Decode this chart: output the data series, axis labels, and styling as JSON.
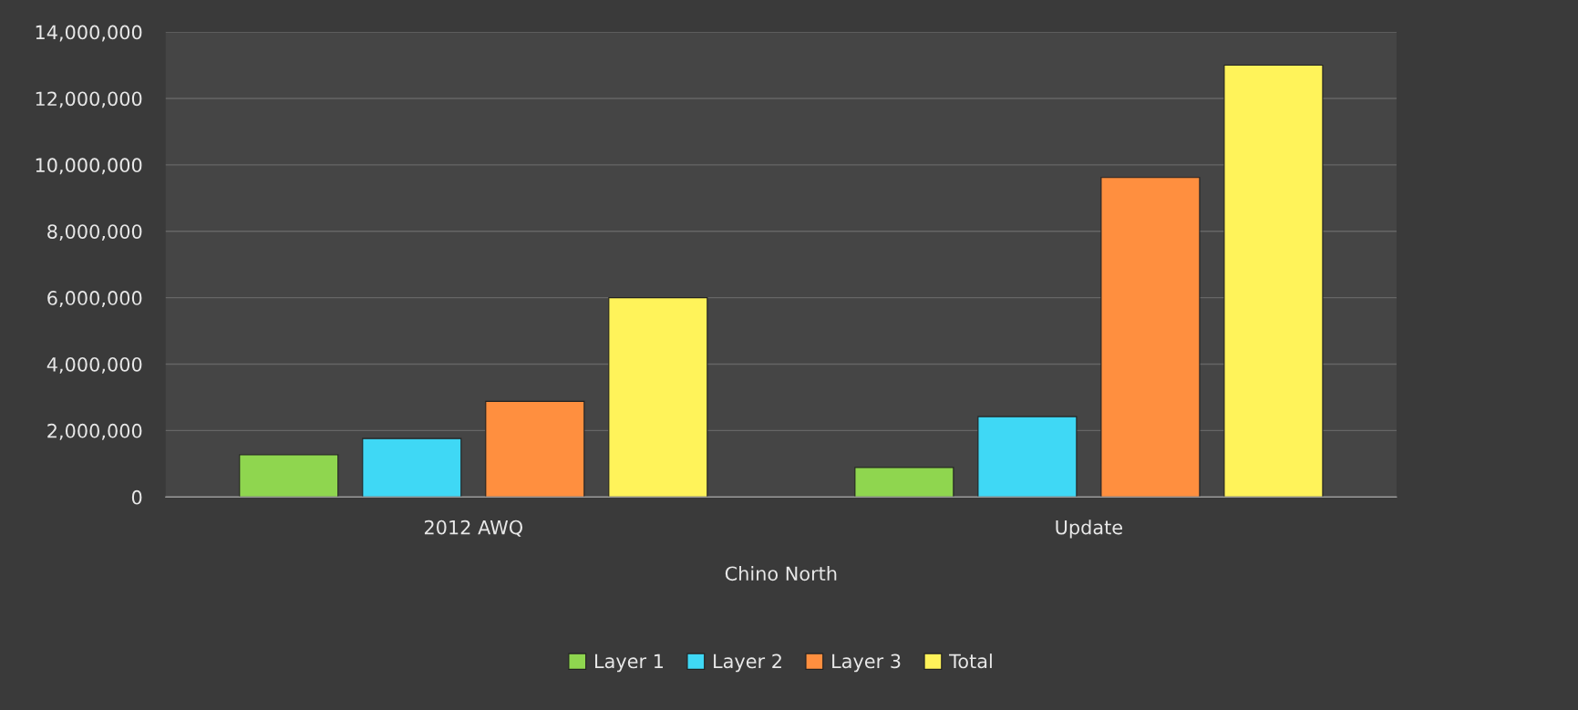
{
  "chart_data": {
    "type": "bar",
    "categories": [
      "2012 AWQ",
      "Update"
    ],
    "xlabel": "Chino North",
    "series": [
      {
        "name": "Layer 1",
        "color": "#8fd64f",
        "values": [
          1270000,
          890000
        ]
      },
      {
        "name": "Layer 2",
        "color": "#3fd8f5",
        "values": [
          1760000,
          2420000
        ]
      },
      {
        "name": "Layer 3",
        "color": "#ff8f3f",
        "values": [
          2880000,
          9620000
        ]
      },
      {
        "name": "Total",
        "color": "#fff35a",
        "values": [
          6000000,
          13000000
        ]
      }
    ],
    "ylim": [
      0,
      14000000
    ],
    "yticks": [
      {
        "value": 0,
        "label": "0"
      },
      {
        "value": 2000000,
        "label": "2,000,000"
      },
      {
        "value": 4000000,
        "label": "4,000,000"
      },
      {
        "value": 6000000,
        "label": "6,000,000"
      },
      {
        "value": 8000000,
        "label": "8,000,000"
      },
      {
        "value": 10000000,
        "label": "10,000,000"
      },
      {
        "value": 12000000,
        "label": "12,000,000"
      },
      {
        "value": 14000000,
        "label": "14,000,000"
      }
    ],
    "grid": "y",
    "legend": "bottom"
  }
}
